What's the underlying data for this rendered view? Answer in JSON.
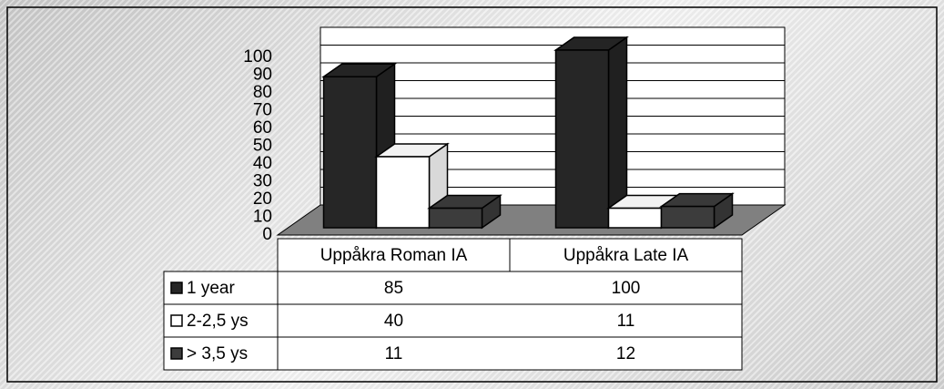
{
  "chart_data": {
    "type": "bar3d",
    "categories": [
      "Uppåkra Roman IA",
      "Uppåkra Late IA"
    ],
    "series": [
      {
        "name": "1 year",
        "color": "#262626",
        "values": [
          85,
          100
        ]
      },
      {
        "name": "2-2,5 ys",
        "color": "#ffffff",
        "values": [
          40,
          11
        ]
      },
      {
        "name": "> 3,5 ys",
        "color": "#3c3c3c",
        "values": [
          11,
          12
        ]
      }
    ],
    "ylim": [
      0,
      100
    ],
    "yticks": [
      0,
      10,
      20,
      30,
      40,
      50,
      60,
      70,
      80,
      90,
      100
    ],
    "grid": true
  }
}
